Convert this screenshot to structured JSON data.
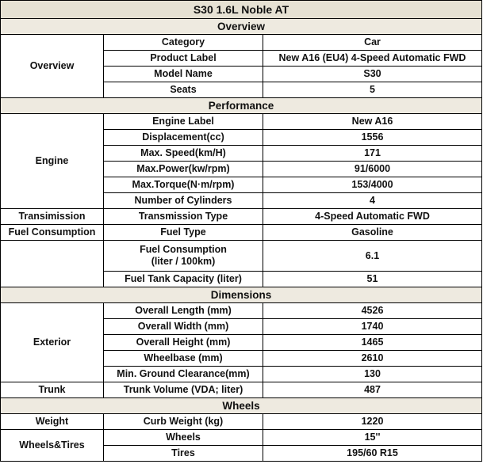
{
  "title": "S30 1.6L Noble AT",
  "sections": [
    {
      "name": "Overview",
      "groups": [
        {
          "label": "Overview",
          "rows": [
            [
              "Category",
              "Car"
            ],
            [
              "Product Label",
              "New A16 (EU4) 4-Speed Automatic FWD"
            ],
            [
              "Model Name",
              "S30"
            ],
            [
              "Seats",
              "5"
            ]
          ]
        }
      ]
    },
    {
      "name": "Performance",
      "groups": [
        {
          "label": "Engine",
          "rows": [
            [
              "Engine Label",
              "New A16"
            ],
            [
              "Displacement(cc)",
              "1556"
            ],
            [
              "Max. Speed(km/H)",
              "171"
            ],
            [
              "Max.Power(kw/rpm)",
              "91/6000"
            ],
            [
              "Max.Torque(N·m/rpm)",
              "153/4000"
            ],
            [
              "Number of Cylinders",
              "4"
            ]
          ]
        },
        {
          "label": "Transimission",
          "rows": [
            [
              "Transmission Type",
              "4-Speed Automatic FWD"
            ]
          ]
        },
        {
          "label": "Fuel Consumption",
          "rows": [
            [
              "Fuel Type",
              "Gasoline"
            ]
          ]
        },
        {
          "label": "",
          "rows": [
            [
              "Fuel Consumption\n(liter / 100km)",
              "6.1"
            ],
            [
              "Fuel Tank Capacity (liter)",
              "51"
            ]
          ]
        }
      ]
    },
    {
      "name": "Dimensions",
      "groups": [
        {
          "label": "Exterior",
          "rows": [
            [
              "Overall Length (mm)",
              "4526"
            ],
            [
              "Overall Width (mm)",
              "1740"
            ],
            [
              "Overall Height (mm)",
              "1465"
            ],
            [
              "Wheelbase (mm)",
              "2610"
            ],
            [
              "Min. Ground Clearance(mm)",
              "130"
            ]
          ]
        },
        {
          "label": "Trunk",
          "rows": [
            [
              "Trunk Volume (VDA; liter)",
              "487"
            ]
          ]
        }
      ]
    },
    {
      "name": "Wheels",
      "groups": [
        {
          "label": "Weight",
          "rows": [
            [
              "Curb Weight (kg)",
              "1220"
            ]
          ]
        },
        {
          "label": "Wheels&Tires",
          "rows": [
            [
              "Wheels",
              "15''"
            ],
            [
              "Tires",
              "195/60 R15"
            ]
          ]
        }
      ]
    }
  ]
}
